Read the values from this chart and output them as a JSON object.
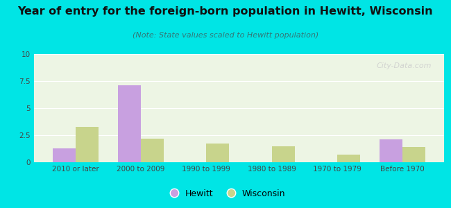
{
  "title": "Year of entry for the foreign-born population in Hewitt, Wisconsin",
  "subtitle": "(Note: State values scaled to Hewitt population)",
  "categories": [
    "2010 or later",
    "2000 to 2009",
    "1990 to 1999",
    "1980 to 1989",
    "1970 to 1979",
    "Before 1970"
  ],
  "hewitt_values": [
    1.3,
    7.1,
    0,
    0,
    0,
    2.1
  ],
  "wisconsin_values": [
    3.3,
    2.2,
    1.7,
    1.5,
    0.7,
    1.4
  ],
  "hewitt_color": "#c8a0e0",
  "wisconsin_color": "#c8d48c",
  "background_outer": "#00e5e5",
  "background_inner": "#edf5e4",
  "ylim": [
    0,
    10
  ],
  "yticks": [
    0,
    2.5,
    5,
    7.5,
    10
  ],
  "bar_width": 0.35,
  "title_fontsize": 11.5,
  "subtitle_fontsize": 8,
  "tick_fontsize": 7.5,
  "legend_fontsize": 9,
  "watermark": "City-Data.com"
}
